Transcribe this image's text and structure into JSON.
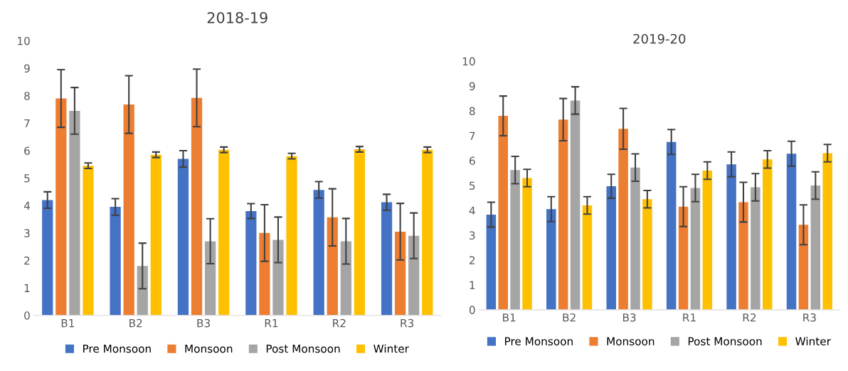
{
  "chart_data": [
    {
      "type": "bar",
      "title": "2018-19",
      "categories": [
        "B1",
        "B2",
        "B3",
        "R1",
        "R2",
        "R3"
      ],
      "ylim": [
        0,
        10
      ],
      "yticks": [
        0,
        1,
        2,
        3,
        4,
        5,
        6,
        7,
        8,
        9,
        10
      ],
      "grid": false,
      "legend": "bottom",
      "series": [
        {
          "name": "Pre Monsoon",
          "color": "#4472c4",
          "values": [
            4.2,
            3.95,
            5.7,
            3.8,
            4.57,
            4.12
          ],
          "errors": [
            0.3,
            0.3,
            0.3,
            0.27,
            0.3,
            0.29
          ]
        },
        {
          "name": "Monsoon",
          "color": "#ed7d31",
          "values": [
            7.9,
            7.68,
            7.92,
            3.0,
            3.57,
            3.05
          ],
          "errors": [
            1.05,
            1.05,
            1.05,
            1.03,
            1.04,
            1.03
          ]
        },
        {
          "name": "Post Monsoon",
          "color": "#a5a5a5",
          "values": [
            7.45,
            1.8,
            2.7,
            2.75,
            2.7,
            2.9
          ],
          "errors": [
            0.85,
            0.83,
            0.82,
            0.83,
            0.83,
            0.83
          ]
        },
        {
          "name": "Winter",
          "color": "#ffc000",
          "values": [
            5.45,
            5.85,
            6.03,
            5.8,
            6.05,
            6.03
          ],
          "errors": [
            0.1,
            0.1,
            0.1,
            0.1,
            0.1,
            0.1
          ]
        }
      ]
    },
    {
      "type": "bar",
      "title": "2019-20",
      "categories": [
        "B1",
        "B2",
        "B3",
        "R1",
        "R2",
        "R3"
      ],
      "ylim": [
        0,
        10
      ],
      "yticks": [
        0,
        1,
        2,
        3,
        4,
        5,
        6,
        7,
        8,
        9,
        10
      ],
      "grid": false,
      "legend": "bottom",
      "series": [
        {
          "name": "Pre Monsoon",
          "color": "#4472c4",
          "values": [
            3.83,
            4.05,
            4.97,
            6.75,
            5.85,
            6.28
          ],
          "errors": [
            0.5,
            0.5,
            0.48,
            0.5,
            0.5,
            0.5
          ]
        },
        {
          "name": "Monsoon",
          "color": "#ed7d31",
          "values": [
            7.8,
            7.65,
            7.28,
            4.15,
            4.33,
            3.42
          ],
          "errors": [
            0.8,
            0.85,
            0.82,
            0.8,
            0.8,
            0.8
          ]
        },
        {
          "name": "Post Monsoon",
          "color": "#a5a5a5",
          "values": [
            5.62,
            8.42,
            5.72,
            4.9,
            4.93,
            5.0
          ],
          "errors": [
            0.55,
            0.55,
            0.55,
            0.55,
            0.55,
            0.55
          ]
        },
        {
          "name": "Winter",
          "color": "#ffc000",
          "values": [
            5.3,
            4.2,
            4.45,
            5.6,
            6.05,
            6.3
          ],
          "errors": [
            0.35,
            0.35,
            0.35,
            0.35,
            0.35,
            0.35
          ]
        }
      ]
    }
  ]
}
